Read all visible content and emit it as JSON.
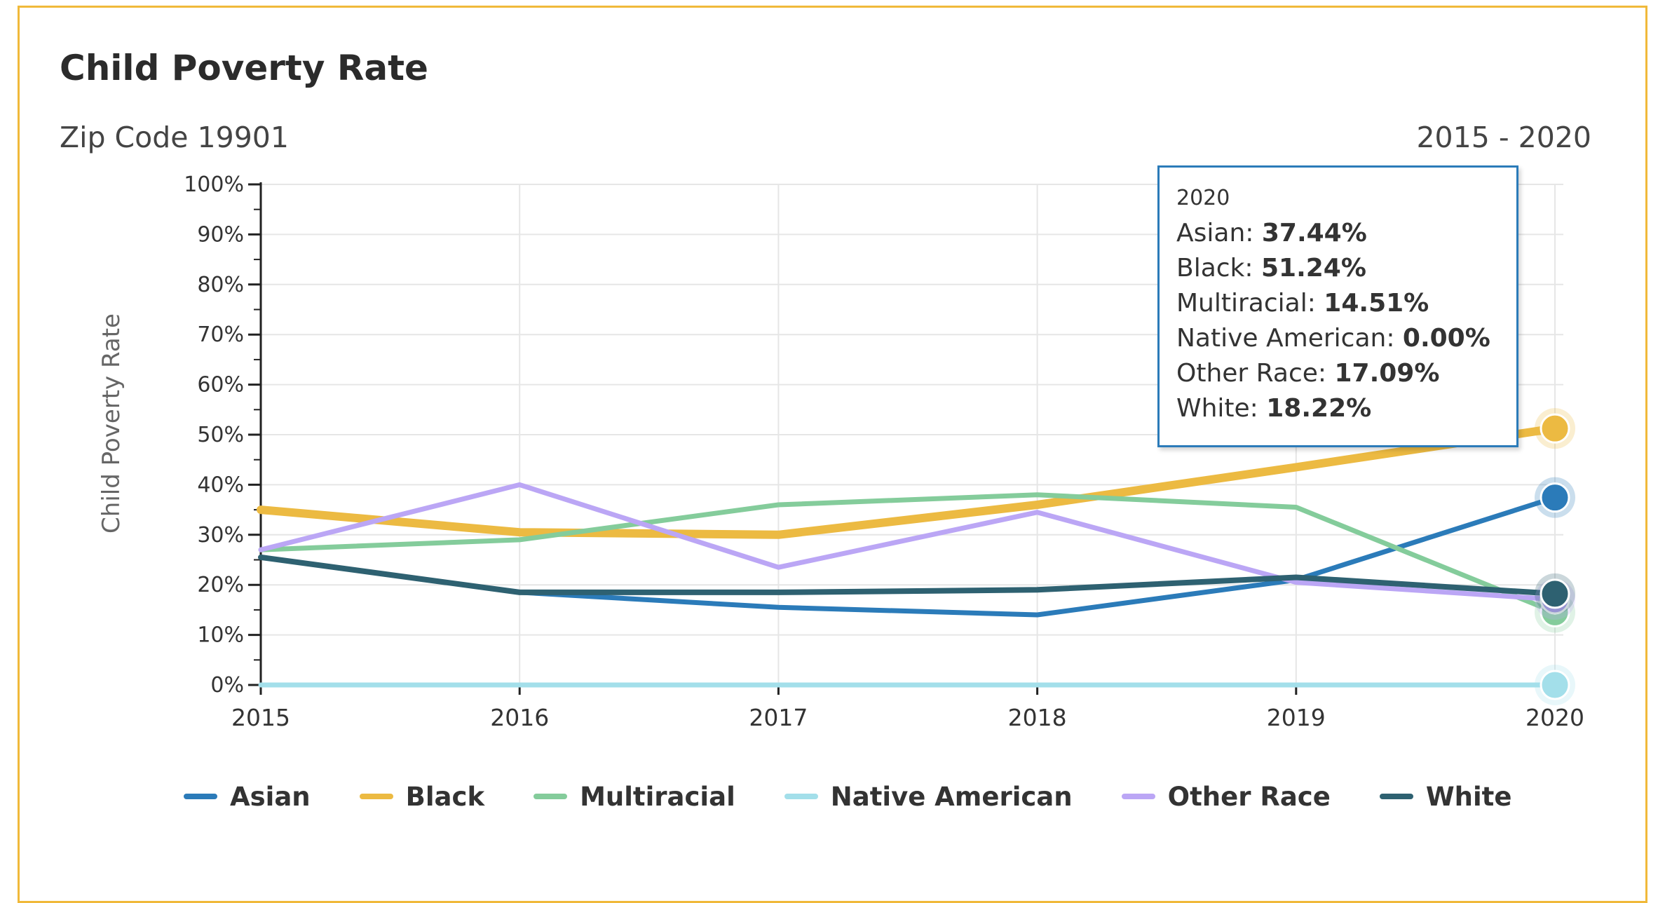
{
  "card": {
    "title": "Child Poverty Rate",
    "subtitle": "Zip Code 19901",
    "range": "2015 - 2020"
  },
  "colors": {
    "border": "#f0b93a",
    "Asian": "#2b7bb9",
    "Black": "#ecba42",
    "Multiracial": "#84cc9b",
    "Native American": "#a3dfea",
    "Other Race": "#bba6f5",
    "White": "#2e6171"
  },
  "chart_data": {
    "type": "line",
    "title": "Child Poverty Rate",
    "subtitle": "Zip Code 19901",
    "ylabel": "Child Poverty Rate",
    "xlabel": "",
    "x": [
      "2015",
      "2016",
      "2017",
      "2018",
      "2019",
      "2020"
    ],
    "ylim": [
      0,
      100
    ],
    "y_ticks": [
      "0%",
      "10%",
      "20%",
      "30%",
      "40%",
      "50%",
      "60%",
      "70%",
      "80%",
      "90%",
      "100%"
    ],
    "grid": true,
    "legend_position": "bottom",
    "series": [
      {
        "name": "Asian",
        "values": [
          25.5,
          18.5,
          15.5,
          14.0,
          21.0,
          37.44
        ]
      },
      {
        "name": "Black",
        "values": [
          35.0,
          30.5,
          30.0,
          36.0,
          43.5,
          51.24
        ]
      },
      {
        "name": "Multiracial",
        "values": [
          27.0,
          29.0,
          36.0,
          38.0,
          35.5,
          14.51
        ]
      },
      {
        "name": "Native American",
        "values": [
          0,
          0,
          0,
          0,
          0,
          0.0
        ]
      },
      {
        "name": "Other Race",
        "values": [
          27.0,
          40.0,
          23.5,
          34.5,
          20.5,
          17.09
        ]
      },
      {
        "name": "White",
        "values": [
          25.5,
          18.5,
          18.5,
          19.0,
          21.5,
          18.22
        ]
      }
    ]
  },
  "tooltip": {
    "header": "2020",
    "rows": [
      {
        "label": "Asian: ",
        "value": "37.44%"
      },
      {
        "label": "Black: ",
        "value": "51.24%"
      },
      {
        "label": "Multiracial: ",
        "value": "14.51%"
      },
      {
        "label": "Native American: ",
        "value": "0.00%"
      },
      {
        "label": "Other Race: ",
        "value": "17.09%"
      },
      {
        "label": "White: ",
        "value": "18.22%"
      }
    ]
  },
  "legend": [
    "Asian",
    "Black",
    "Multiracial",
    "Native American",
    "Other Race",
    "White"
  ]
}
